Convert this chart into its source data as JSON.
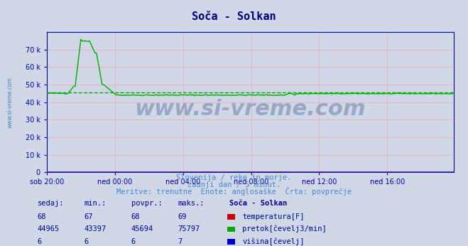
{
  "title": "Soča - Solkan",
  "title_color": "#000080",
  "background_color": "#d0d8e8",
  "plot_bg_color": "#d0d8e8",
  "xlabel_ticks": [
    "sob 20:00",
    "ned 00:00",
    "ned 04:00",
    "ned 08:00",
    "ned 12:00",
    "ned 16:00"
  ],
  "ytick_labels": [
    "0",
    "10 k",
    "20 k",
    "30 k",
    "40 k",
    "50 k",
    "60 k",
    "70 k"
  ],
  "ytick_values": [
    0,
    10000,
    20000,
    30000,
    40000,
    50000,
    60000,
    70000
  ],
  "ylim": [
    0,
    80000
  ],
  "xlim": [
    0,
    287
  ],
  "grid_color": "#ff9999",
  "avg_line_value": 45694,
  "avg_line_color": "#00aa00",
  "flow_line_color": "#00aa00",
  "temp_line_color": "#cc0000",
  "height_line_color": "#0000cc",
  "watermark_text": "www.si-vreme.com",
  "watermark_color": "#1a3a7a",
  "subtitle1": "Slovenija / reke in morje.",
  "subtitle2": "zadnji dan / 5 minut.",
  "subtitle3": "Meritve: trenutne  Enote: anglosaške  Črta: povprečje",
  "subtitle_color": "#4488cc",
  "table_header": [
    "sedaj:",
    "min.:",
    "povpr.:",
    "maks.:",
    "Soča - Solkan"
  ],
  "table_data": [
    [
      68,
      67,
      68,
      69,
      "temperatura[F]",
      "#cc0000"
    ],
    [
      44965,
      43397,
      45694,
      75797,
      "pretok[čevelj3/min]",
      "#00aa00"
    ],
    [
      6,
      6,
      6,
      7,
      "višina[čevelj]",
      "#0000cc"
    ]
  ],
  "left_label": "www.si-vreme.com",
  "left_label_color": "#4488aa"
}
